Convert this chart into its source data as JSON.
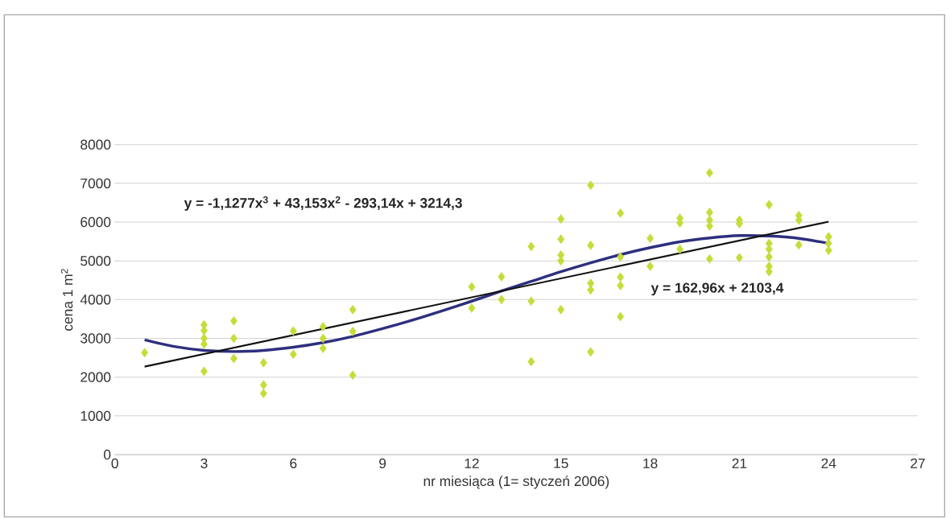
{
  "chart_data": {
    "type": "scatter",
    "xlabel": "nr miesiąca (1= styczeń 2006)",
    "ylabel": "cena 1 m$^{2}$",
    "annotations": [
      "y = -1,1277x$^{3}$ + 43,153x$^{2}$ - 293,14x + 3214,3",
      "y = 162,96x + 2103,4"
    ],
    "xlim": [
      0,
      27
    ],
    "ylim": [
      0,
      8000
    ],
    "xticks": [
      0,
      3,
      6,
      9,
      12,
      15,
      18,
      21,
      24,
      27
    ],
    "yticks": [
      0,
      1000,
      2000,
      3000,
      4000,
      5000,
      6000,
      7000,
      8000
    ],
    "grid": "y",
    "series": [
      {
        "marker": "diamond",
        "color": "#c5dc3a",
        "x": [
          1,
          3,
          3,
          3,
          3,
          3,
          4,
          4,
          4,
          5,
          5,
          5,
          6,
          6,
          7,
          7,
          7,
          8,
          8,
          8,
          12,
          12,
          13,
          13,
          14,
          14,
          14,
          15,
          15,
          15,
          15,
          15,
          16,
          16,
          16,
          16,
          16,
          17,
          17,
          17,
          17,
          17,
          18,
          18,
          19,
          19,
          19,
          20,
          20,
          20,
          20,
          20,
          21,
          21,
          21,
          22,
          22,
          22,
          22,
          22,
          22,
          23,
          23,
          23,
          24,
          24,
          24
        ],
        "values": [
          2630,
          3350,
          3200,
          3000,
          2850,
          2150,
          3450,
          3000,
          2480,
          2370,
          1800,
          1580,
          3190,
          2590,
          3300,
          3000,
          2740,
          3740,
          3180,
          2050,
          4330,
          3780,
          4590,
          4000,
          5370,
          3960,
          2400,
          6080,
          5560,
          5150,
          5000,
          3740,
          6950,
          5400,
          4420,
          4250,
          2650,
          6230,
          5100,
          4580,
          4360,
          3560,
          5580,
          4860,
          6100,
          5980,
          5300,
          7270,
          6250,
          6050,
          5900,
          5050,
          6050,
          5960,
          5080,
          6450,
          5450,
          5300,
          5100,
          4860,
          4720,
          6170,
          6050,
          5410,
          5620,
          5450,
          5270
        ]
      },
      {
        "type": "line",
        "marker": "none",
        "color": "#2e2f7e",
        "x": [
          1,
          2,
          3,
          4,
          5,
          6,
          7,
          8,
          9,
          10,
          11,
          12,
          13,
          14,
          15,
          16,
          17,
          18,
          19,
          20,
          21,
          22,
          23,
          24
        ],
        "values": [
          2960,
          2790,
          2690,
          2660,
          2690,
          2770,
          2890,
          3050,
          3250,
          3470,
          3710,
          3960,
          4220,
          4470,
          4720,
          4950,
          5160,
          5340,
          5490,
          5590,
          5650,
          5640,
          5580,
          5450
        ]
      },
      {
        "type": "line",
        "marker": "none",
        "color": "#111111",
        "x": [
          1,
          24
        ],
        "values": [
          2270,
          6010
        ]
      }
    ]
  }
}
